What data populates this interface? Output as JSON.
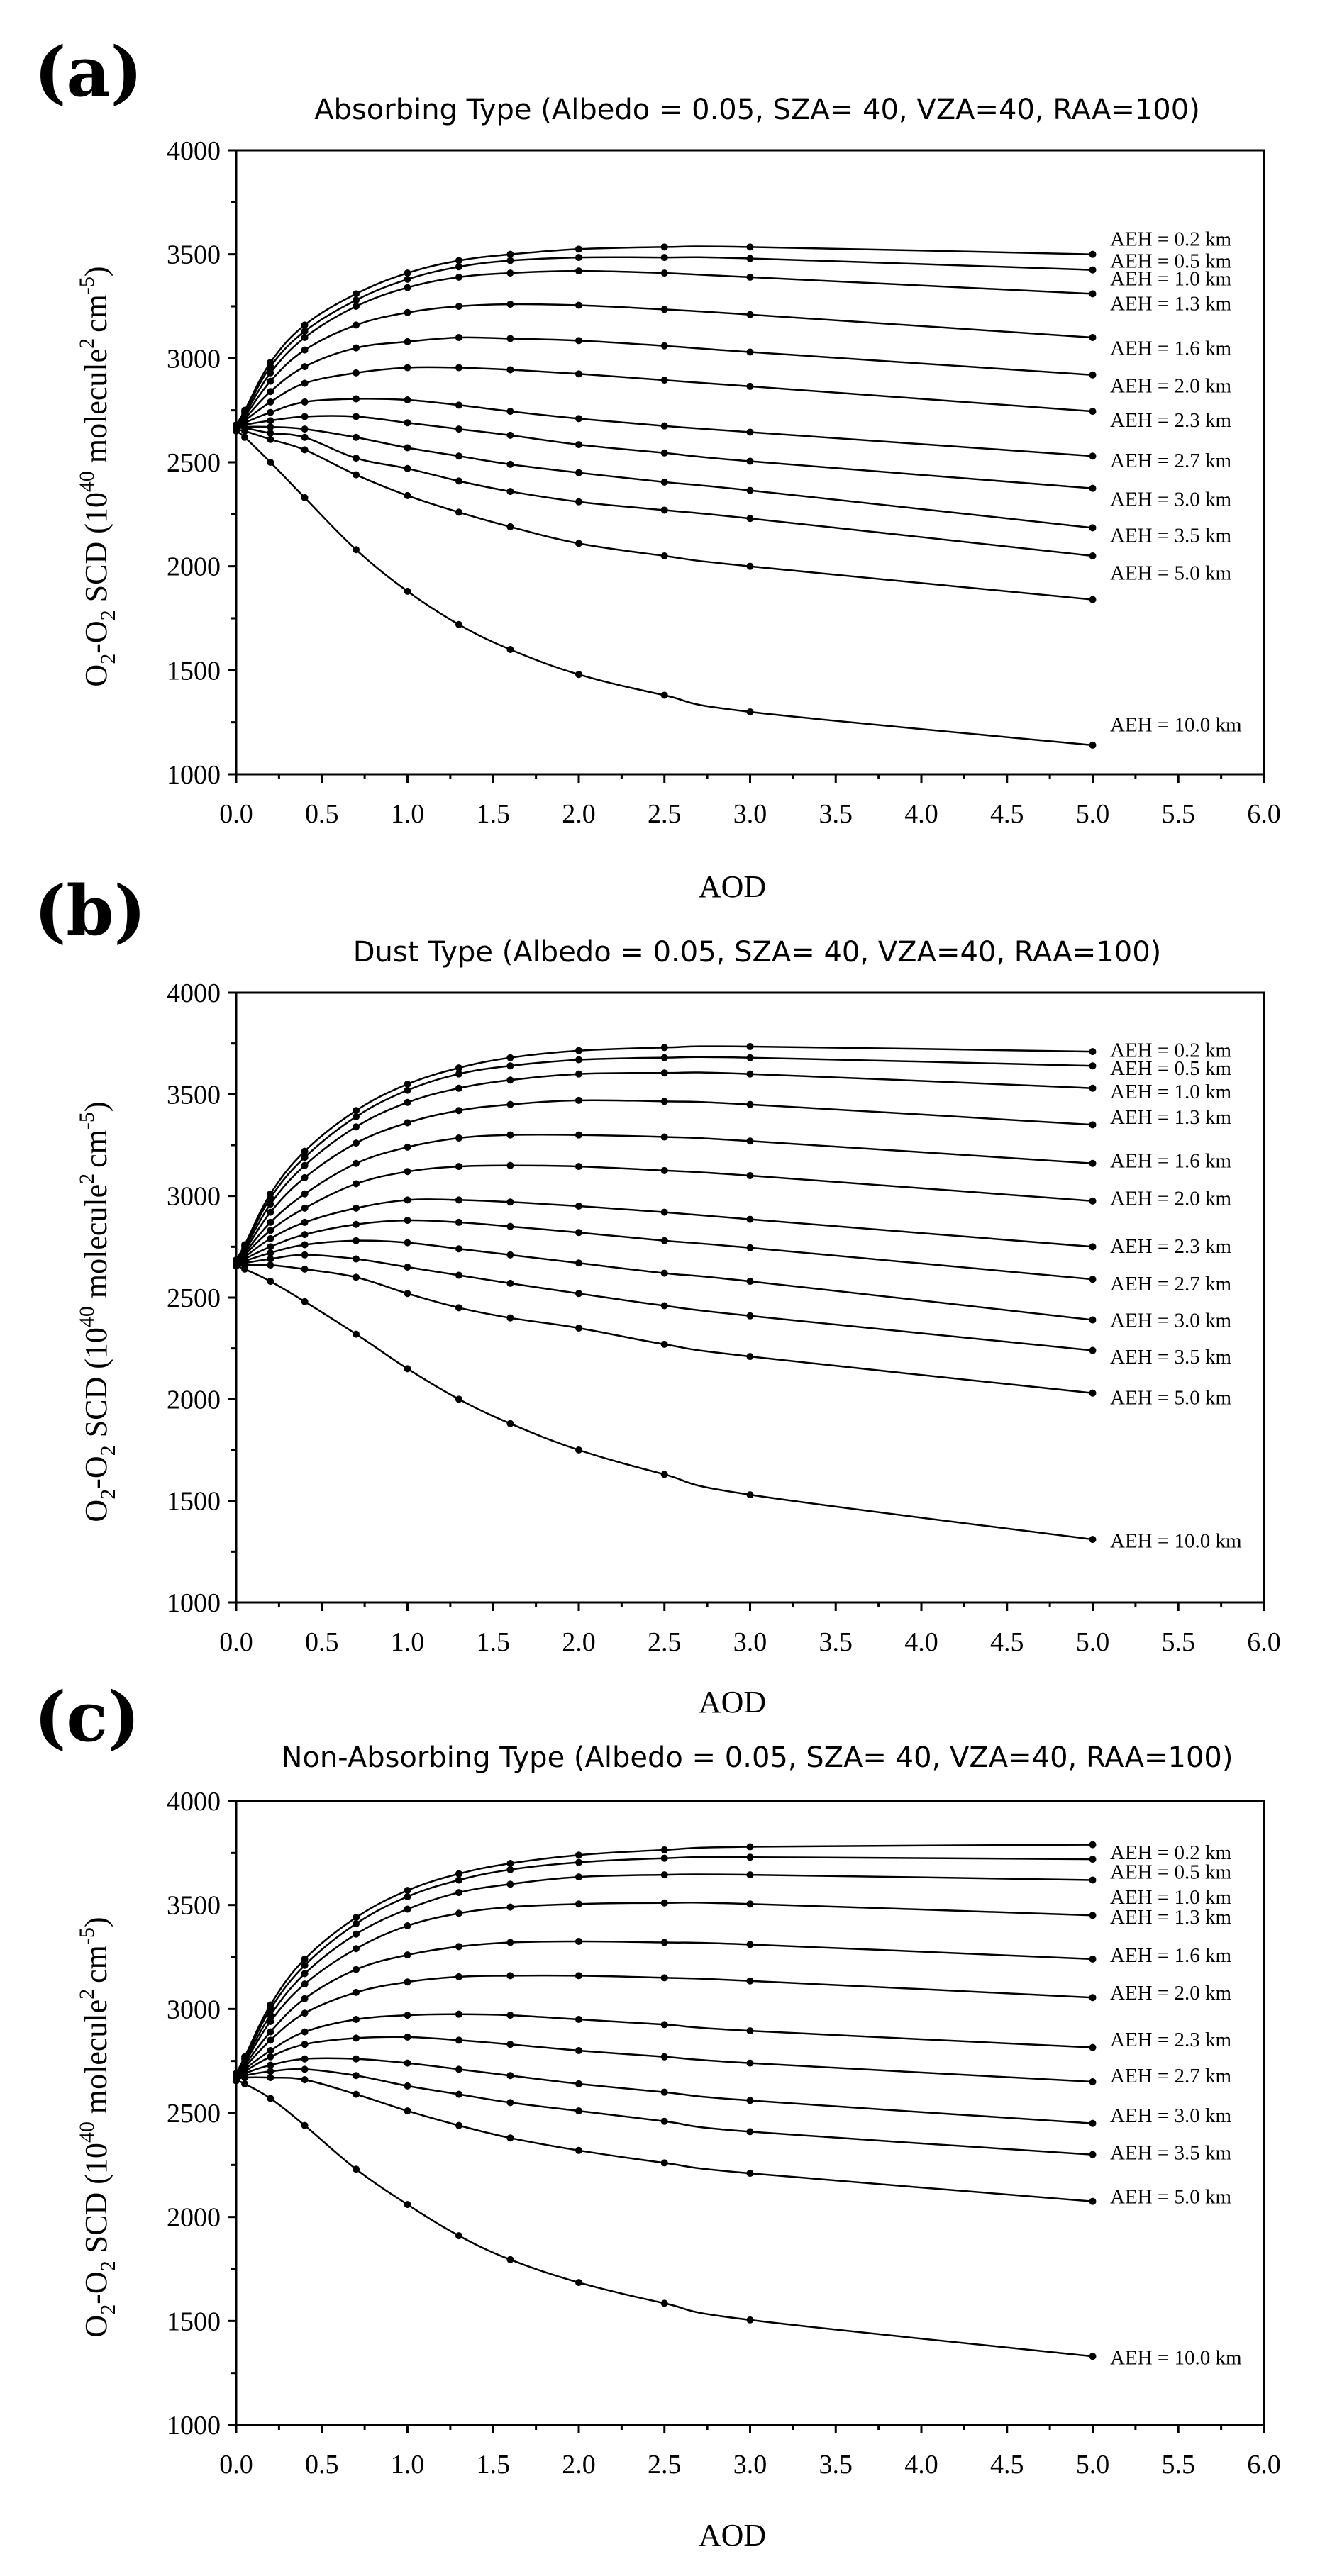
{
  "chart_data": [
    {
      "type": "line",
      "panel_label": "(a)",
      "title": "Absorbing Type (Albedo = 0.05, SZA= 40, VZA=40, RAA=100)",
      "xlabel": "AOD",
      "ylabel": "O2-O2 SCD (10^40 molecule^2 cm^-5)",
      "ylabel_parts": {
        "base": "O",
        "sub1": "2",
        "dash": "-O",
        "sub2": "2",
        "mid": " SCD (10",
        "sup1": "40",
        "mid2": " molecule",
        "sup2": "2",
        "mid3": "cm",
        "sup3": "-5",
        "end": ")"
      },
      "xlim": [
        0,
        6
      ],
      "ylim": [
        1000,
        4000
      ],
      "x_ticks": [
        "0.0",
        "0.5",
        "1.0",
        "1.5",
        "2.0",
        "2.5",
        "3.0",
        "3.5",
        "4.0",
        "4.5",
        "5.0",
        "5.5",
        "6.0"
      ],
      "y_ticks": [
        "1000",
        "1500",
        "2000",
        "2500",
        "3000",
        "3500",
        "4000"
      ],
      "grid": false,
      "x": [
        0,
        0.05,
        0.2,
        0.4,
        0.7,
        1.0,
        1.3,
        1.6,
        2.0,
        2.5,
        3.0,
        5.0
      ],
      "series": [
        {
          "name": "AEH = 0.2 km",
          "values": [
            2680,
            2750,
            2980,
            3160,
            3310,
            3410,
            3470,
            3500,
            3525,
            3535,
            3535,
            3500
          ],
          "label_value": 3575
        },
        {
          "name": "AEH = 0.5 km",
          "values": [
            2675,
            2740,
            2960,
            3130,
            3280,
            3380,
            3440,
            3470,
            3485,
            3485,
            3480,
            3425
          ],
          "label_value": 3470
        },
        {
          "name": "AEH = 1.0 km",
          "values": [
            2675,
            2730,
            2930,
            3100,
            3250,
            3340,
            3390,
            3410,
            3420,
            3410,
            3390,
            3310
          ],
          "label_value": 3385
        },
        {
          "name": "AEH = 1.3 km",
          "values": [
            2670,
            2720,
            2890,
            3040,
            3160,
            3220,
            3250,
            3260,
            3255,
            3235,
            3210,
            3100
          ],
          "label_value": 3265
        },
        {
          "name": "AEH = 1.6 km",
          "values": [
            2670,
            2710,
            2840,
            2960,
            3050,
            3080,
            3100,
            3095,
            3085,
            3060,
            3030,
            2920
          ],
          "label_value": 3050
        },
        {
          "name": "AEH = 2.0 km",
          "values": [
            2665,
            2700,
            2790,
            2880,
            2930,
            2955,
            2955,
            2945,
            2925,
            2895,
            2865,
            2745
          ],
          "label_value": 2870
        },
        {
          "name": "AEH = 2.3 km",
          "values": [
            2665,
            2690,
            2740,
            2790,
            2805,
            2800,
            2775,
            2745,
            2710,
            2675,
            2645,
            2530
          ],
          "label_value": 2705
        },
        {
          "name": "AEH = 2.7 km",
          "values": [
            2660,
            2680,
            2700,
            2720,
            2720,
            2690,
            2660,
            2630,
            2585,
            2545,
            2505,
            2375
          ],
          "label_value": 2510
        },
        {
          "name": "AEH = 3.0 km",
          "values": [
            2660,
            2670,
            2670,
            2660,
            2620,
            2570,
            2530,
            2490,
            2450,
            2405,
            2365,
            2185
          ],
          "label_value": 2325
        },
        {
          "name": "AEH = 3.5 km",
          "values": [
            2660,
            2665,
            2640,
            2620,
            2520,
            2470,
            2410,
            2360,
            2310,
            2270,
            2230,
            2050
          ],
          "label_value": 2150
        },
        {
          "name": "AEH = 5.0 km",
          "values": [
            2655,
            2650,
            2610,
            2560,
            2440,
            2340,
            2260,
            2190,
            2110,
            2050,
            2000,
            1840
          ],
          "label_value": 1970
        },
        {
          "name": "AEH = 10.0 km",
          "values": [
            2650,
            2620,
            2500,
            2330,
            2080,
            1880,
            1720,
            1600,
            1480,
            1380,
            1300,
            1140
          ],
          "label_value": 1240
        }
      ]
    },
    {
      "type": "line",
      "panel_label": "(b)",
      "title": "Dust Type (Albedo = 0.05, SZA= 40, VZA=40, RAA=100)",
      "xlabel": "AOD",
      "ylabel": "O2-O2 SCD (10^40 molecule^2 cm^-5)",
      "ylabel_parts": {
        "base": "O",
        "sub1": "2",
        "dash": "-O",
        "sub2": "2",
        "mid": " SCD (10",
        "sup1": "40",
        "mid2": " molecule",
        "sup2": "2",
        "mid3": "cm",
        "sup3": "-5",
        "end": ")"
      },
      "xlim": [
        0,
        6
      ],
      "ylim": [
        1000,
        4000
      ],
      "x_ticks": [
        "0.0",
        "0.5",
        "1.0",
        "1.5",
        "2.0",
        "2.5",
        "3.0",
        "3.5",
        "4.0",
        "4.5",
        "5.0",
        "5.5",
        "6.0"
      ],
      "y_ticks": [
        "1000",
        "1500",
        "2000",
        "2500",
        "3000",
        "3500",
        "4000"
      ],
      "grid": false,
      "x": [
        0,
        0.05,
        0.2,
        0.4,
        0.7,
        1.0,
        1.3,
        1.6,
        2.0,
        2.5,
        3.0,
        5.0
      ],
      "series": [
        {
          "name": "AEH = 0.2 km",
          "values": [
            2685,
            2760,
            3010,
            3220,
            3420,
            3550,
            3630,
            3680,
            3715,
            3730,
            3735,
            3710
          ],
          "label_value": 3720
        },
        {
          "name": "AEH = 0.5 km",
          "values": [
            2680,
            2750,
            2990,
            3190,
            3390,
            3520,
            3600,
            3640,
            3670,
            3680,
            3680,
            3640
          ],
          "label_value": 3630
        },
        {
          "name": "AEH = 1.0 km",
          "values": [
            2680,
            2740,
            2960,
            3150,
            3340,
            3460,
            3530,
            3570,
            3600,
            3605,
            3600,
            3530
          ],
          "label_value": 3515
        },
        {
          "name": "AEH = 1.3 km",
          "values": [
            2675,
            2730,
            2920,
            3090,
            3260,
            3360,
            3420,
            3450,
            3470,
            3465,
            3450,
            3350
          ],
          "label_value": 3390
        },
        {
          "name": "AEH = 1.6 km",
          "values": [
            2675,
            2720,
            2870,
            3010,
            3160,
            3240,
            3285,
            3300,
            3300,
            3290,
            3270,
            3160
          ],
          "label_value": 3175
        },
        {
          "name": "AEH = 2.0 km",
          "values": [
            2670,
            2710,
            2830,
            2940,
            3060,
            3120,
            3145,
            3150,
            3145,
            3125,
            3100,
            2975
          ],
          "label_value": 2990
        },
        {
          "name": "AEH = 2.3 km",
          "values": [
            2670,
            2700,
            2790,
            2870,
            2940,
            2980,
            2980,
            2970,
            2950,
            2920,
            2885,
            2750
          ],
          "label_value": 2755
        },
        {
          "name": "AEH = 2.7 km",
          "values": [
            2665,
            2690,
            2750,
            2810,
            2860,
            2880,
            2870,
            2850,
            2820,
            2780,
            2745,
            2590
          ],
          "label_value": 2570
        },
        {
          "name": "AEH = 3.0 km",
          "values": [
            2665,
            2680,
            2720,
            2760,
            2780,
            2770,
            2740,
            2710,
            2670,
            2620,
            2580,
            2390
          ],
          "label_value": 2390
        },
        {
          "name": "AEH = 3.5 km",
          "values": [
            2660,
            2670,
            2690,
            2710,
            2690,
            2650,
            2610,
            2570,
            2520,
            2460,
            2410,
            2240
          ],
          "label_value": 2210
        },
        {
          "name": "AEH = 5.0 km",
          "values": [
            2660,
            2660,
            2660,
            2640,
            2600,
            2520,
            2450,
            2400,
            2350,
            2270,
            2210,
            2030
          ],
          "label_value": 2010
        },
        {
          "name": "AEH = 10.0 km",
          "values": [
            2655,
            2640,
            2580,
            2480,
            2320,
            2150,
            2000,
            1880,
            1750,
            1630,
            1530,
            1310
          ],
          "label_value": 1305
        }
      ]
    },
    {
      "type": "line",
      "panel_label": "(c)",
      "title": "Non-Absorbing Type (Albedo = 0.05, SZA= 40, VZA=40, RAA=100)",
      "xlabel": "AOD",
      "ylabel": "O2-O2 SCD (10^40 molecule^2 cm^-5)",
      "ylabel_parts": {
        "base": "O",
        "sub1": "2",
        "dash": "-O",
        "sub2": "2",
        "mid": " SCD (10",
        "sup1": "40",
        "mid2": " molecule",
        "sup2": "2",
        "mid3": "cm",
        "sup3": "-5",
        "end": ")"
      },
      "xlim": [
        0,
        6
      ],
      "ylim": [
        1000,
        4000
      ],
      "x_ticks": [
        "0.0",
        "0.5",
        "1.0",
        "1.5",
        "2.0",
        "2.5",
        "3.0",
        "3.5",
        "4.0",
        "4.5",
        "5.0",
        "5.5",
        "6.0"
      ],
      "y_ticks": [
        "1000",
        "1500",
        "2000",
        "2500",
        "3000",
        "3500",
        "4000"
      ],
      "grid": false,
      "x": [
        0,
        0.05,
        0.2,
        0.4,
        0.7,
        1.0,
        1.3,
        1.6,
        2.0,
        2.5,
        3.0,
        5.0
      ],
      "series": [
        {
          "name": "AEH = 0.2 km",
          "values": [
            2690,
            2770,
            3020,
            3240,
            3440,
            3570,
            3650,
            3700,
            3740,
            3765,
            3780,
            3790
          ],
          "label_value": 3755
        },
        {
          "name": "AEH = 0.5 km",
          "values": [
            2685,
            2760,
            3000,
            3210,
            3410,
            3540,
            3620,
            3670,
            3705,
            3725,
            3730,
            3720
          ],
          "label_value": 3660
        },
        {
          "name": "AEH = 1.0 km",
          "values": [
            2680,
            2750,
            2970,
            3170,
            3360,
            3480,
            3560,
            3600,
            3635,
            3645,
            3645,
            3620
          ],
          "label_value": 3540
        },
        {
          "name": "AEH = 1.3 km",
          "values": [
            2680,
            2740,
            2940,
            3120,
            3290,
            3400,
            3460,
            3490,
            3505,
            3510,
            3505,
            3450
          ],
          "label_value": 3445
        },
        {
          "name": "AEH = 1.6 km",
          "values": [
            2675,
            2730,
            2890,
            3050,
            3190,
            3260,
            3300,
            3320,
            3325,
            3320,
            3310,
            3240
          ],
          "label_value": 3260
        },
        {
          "name": "AEH = 2.0 km",
          "values": [
            2675,
            2720,
            2850,
            2980,
            3080,
            3130,
            3155,
            3160,
            3160,
            3150,
            3135,
            3055
          ],
          "label_value": 3080
        },
        {
          "name": "AEH = 2.3 km",
          "values": [
            2670,
            2710,
            2800,
            2890,
            2950,
            2970,
            2975,
            2970,
            2950,
            2925,
            2895,
            2815
          ],
          "label_value": 2855
        },
        {
          "name": "AEH = 2.7 km",
          "values": [
            2670,
            2700,
            2770,
            2830,
            2860,
            2865,
            2850,
            2830,
            2800,
            2770,
            2740,
            2650
          ],
          "label_value": 2680
        },
        {
          "name": "AEH = 3.0 km",
          "values": [
            2665,
            2690,
            2730,
            2760,
            2760,
            2740,
            2710,
            2680,
            2640,
            2600,
            2560,
            2450
          ],
          "label_value": 2490
        },
        {
          "name": "AEH = 3.5 km",
          "values": [
            2665,
            2680,
            2700,
            2710,
            2680,
            2630,
            2590,
            2550,
            2510,
            2460,
            2410,
            2300
          ],
          "label_value": 2310
        },
        {
          "name": "AEH = 5.0 km",
          "values": [
            2660,
            2670,
            2670,
            2660,
            2590,
            2510,
            2440,
            2380,
            2320,
            2260,
            2210,
            2075
          ],
          "label_value": 2100
        },
        {
          "name": "AEH = 10.0 km",
          "values": [
            2655,
            2640,
            2570,
            2440,
            2230,
            2060,
            1910,
            1795,
            1685,
            1585,
            1505,
            1330
          ],
          "label_value": 1325
        }
      ]
    }
  ]
}
